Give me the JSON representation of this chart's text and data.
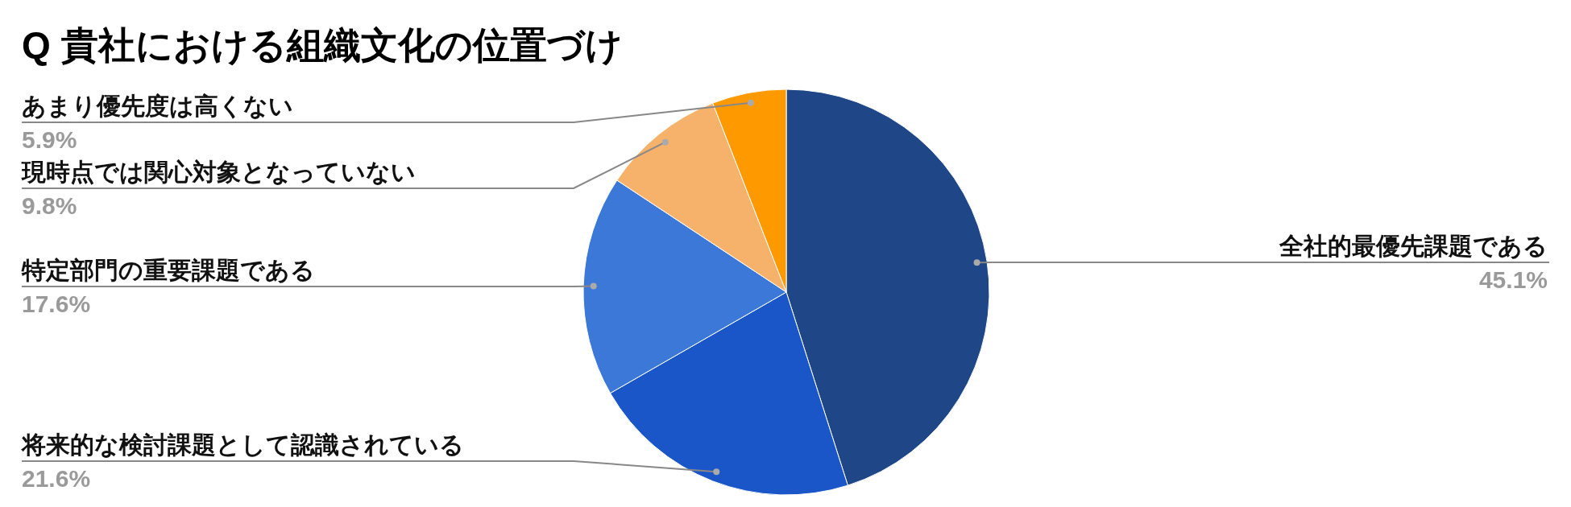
{
  "chart_data": {
    "type": "pie",
    "title": "Q 貴社における組織文化の位置づけ",
    "categories": [
      "全社的最優先課題である",
      "将来的な検討課題として認識されている",
      "特定部門の重要課題である",
      "現時点では関心対象となっていない",
      "あまり優先度は高くない"
    ],
    "values": [
      45.1,
      21.6,
      17.6,
      9.8,
      5.9
    ],
    "colors": [
      "#1f4788",
      "#1a56c8",
      "#3c78d8",
      "#f6b26b",
      "#ff9900"
    ],
    "value_labels": [
      "45.1%",
      "21.6%",
      "17.6%",
      "9.8%",
      "5.9%"
    ]
  }
}
